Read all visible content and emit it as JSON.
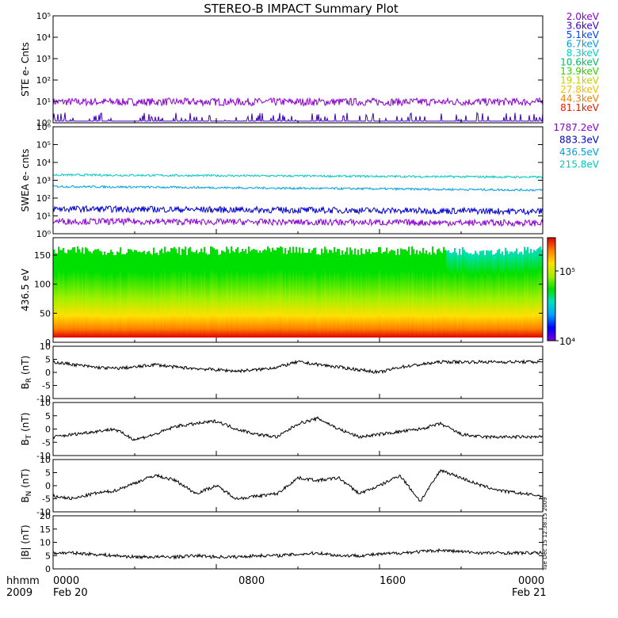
{
  "title": "STEREO-B IMPACT Summary Plot",
  "x_axis": {
    "ticks": [
      "0000",
      "0800",
      "1600",
      "0000"
    ],
    "dates": [
      "Feb 20",
      "Feb 21"
    ],
    "left_labels": [
      "hhmm",
      "2009"
    ],
    "range_hours": [
      0,
      24
    ]
  },
  "timestamp": "Tue Dec 15 12:38:15 2009",
  "colorbar": {
    "ticks": [
      "10⁴",
      "10⁵"
    ],
    "colors": [
      "#7a00d8",
      "#0000ff",
      "#00a0ff",
      "#00e0c0",
      "#00e000",
      "#a0f000",
      "#ffe000",
      "#ff8000",
      "#e00000"
    ]
  },
  "chart_data": [
    {
      "type": "line",
      "panel": "ste",
      "ylabel": "STE e- Cnts",
      "scale": "log",
      "ylim": [
        1,
        100000
      ],
      "ytick_labels": [
        "10⁰",
        "10¹",
        "10²",
        "10³",
        "10⁴",
        "10⁵"
      ],
      "legend": [
        {
          "label": "2.0keV",
          "color": "#8b00d0"
        },
        {
          "label": "3.6keV",
          "color": "#4000c0"
        },
        {
          "label": "5.1keV",
          "color": "#0040ff"
        },
        {
          "label": "6.7keV",
          "color": "#00a0e0"
        },
        {
          "label": "8.3keV",
          "color": "#00d0c0"
        },
        {
          "label": "10.6keV",
          "color": "#00c060"
        },
        {
          "label": "13.9keV",
          "color": "#30d000"
        },
        {
          "label": "19.1keV",
          "color": "#c0d000"
        },
        {
          "label": "27.8keV",
          "color": "#f0c000"
        },
        {
          "label": "44.3keV",
          "color": "#f08000"
        },
        {
          "label": "81.1keV",
          "color": "#e02000"
        }
      ],
      "series": [
        {
          "label": "2.0keV",
          "level": 9.5
        },
        {
          "label": "3.6keV",
          "level": 1.2
        }
      ]
    },
    {
      "type": "line",
      "panel": "swea",
      "ylabel": "SWEA e- cnts",
      "scale": "log",
      "ylim": [
        1,
        1000000
      ],
      "ytick_labels": [
        "10⁰",
        "10¹",
        "10²",
        "10³",
        "10⁴",
        "10⁵",
        "10⁶"
      ],
      "legend": [
        {
          "label": "1787.2eV",
          "color": "#8b00d0"
        },
        {
          "label": "883.3eV",
          "color": "#0000d0"
        },
        {
          "label": "436.5eV",
          "color": "#00a0e0"
        },
        {
          "label": "215.8eV",
          "color": "#00c8c0"
        }
      ],
      "series": [
        {
          "label": "215.8eV",
          "start": 2000,
          "end": 1500
        },
        {
          "label": "436.5eV",
          "start": 450,
          "end": 280
        },
        {
          "label": "883.3eV",
          "start": 25,
          "end": 18
        },
        {
          "label": "1787.2eV",
          "start": 5,
          "end": 4
        }
      ]
    },
    {
      "type": "heatmap",
      "panel": "pad",
      "ylabel": "436.5 eV",
      "ylim": [
        0,
        180
      ],
      "yticks": [
        0,
        50,
        100,
        150
      ],
      "colorbar_range": [
        10000,
        300000
      ]
    },
    {
      "type": "line",
      "panel": "br",
      "ylabel": "B",
      "ylabel_sub": "R",
      "ylabel_unit": "(nT)",
      "ylim": [
        -10,
        10
      ],
      "yticks": [
        -10,
        -5,
        0,
        5,
        10
      ],
      "x": [
        0,
        1,
        2,
        3,
        4,
        5,
        6,
        7,
        8,
        9,
        10,
        11,
        12,
        13,
        14,
        15,
        16,
        17,
        18,
        19,
        20,
        21,
        22,
        23,
        24
      ],
      "values": [
        4,
        3,
        2,
        1.5,
        2,
        3,
        2,
        1.5,
        1,
        0.5,
        1,
        2,
        4,
        3,
        2,
        1,
        0,
        2,
        3,
        4,
        4,
        4,
        4,
        4,
        4
      ]
    },
    {
      "type": "line",
      "panel": "bt",
      "ylabel": "B",
      "ylabel_sub": "T",
      "ylabel_unit": "(nT)",
      "ylim": [
        -10,
        10
      ],
      "yticks": [
        -10,
        -5,
        0,
        5,
        10
      ],
      "x": [
        0,
        1,
        2,
        3,
        4,
        5,
        6,
        7,
        8,
        9,
        10,
        11,
        12,
        13,
        14,
        15,
        16,
        17,
        18,
        19,
        20,
        21,
        22,
        23,
        24
      ],
      "values": [
        -3,
        -2,
        -1,
        0,
        -4,
        -2,
        1,
        2,
        3,
        0,
        -2,
        -3,
        2,
        4,
        0,
        -3,
        -2,
        -1,
        0,
        2,
        -2,
        -3,
        -3,
        -3,
        -3
      ]
    },
    {
      "type": "line",
      "panel": "bn",
      "ylabel": "B",
      "ylabel_sub": "N",
      "ylabel_unit": "(nT)",
      "ylim": [
        -10,
        10
      ],
      "yticks": [
        -10,
        -5,
        0,
        5,
        10
      ],
      "x": [
        0,
        1,
        2,
        3,
        4,
        5,
        6,
        7,
        8,
        9,
        10,
        11,
        12,
        13,
        14,
        15,
        16,
        17,
        18,
        19,
        20,
        21,
        22,
        23,
        24
      ],
      "values": [
        -4,
        -5,
        -3,
        -2,
        1,
        4,
        2,
        -3,
        0,
        -5,
        -4,
        -3,
        3,
        2,
        3,
        -3,
        0,
        4,
        -6,
        6,
        3,
        0,
        -2,
        -3,
        -4
      ]
    },
    {
      "type": "line",
      "panel": "bmag",
      "ylabel": "|B| (nT)",
      "ylim": [
        0,
        20
      ],
      "yticks": [
        0,
        5,
        10,
        15,
        20
      ],
      "x": [
        0,
        1,
        2,
        3,
        4,
        5,
        6,
        7,
        8,
        9,
        10,
        11,
        12,
        13,
        14,
        15,
        16,
        17,
        18,
        19,
        20,
        21,
        22,
        23,
        24
      ],
      "values": [
        6,
        6,
        5.5,
        5,
        4.5,
        4.5,
        4.5,
        5,
        4.5,
        4.5,
        5,
        5,
        5.5,
        6,
        5,
        5,
        5.5,
        6,
        6.5,
        7,
        6.5,
        6,
        6,
        6,
        6
      ]
    }
  ]
}
